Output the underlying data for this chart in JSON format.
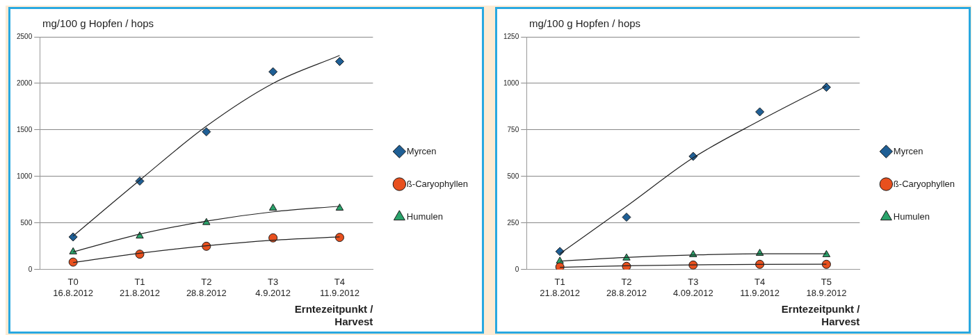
{
  "chart_data": [
    {
      "type": "scatter",
      "ylabel": "mg/100 g Hopfen / hops",
      "xlabel": "Erntezeitpunkt /\nHarvest",
      "categories": [
        "T0\n16.8.2012",
        "T1\n21.8.2012",
        "T2\n28.8.2012",
        "T3\n4.9.2012",
        "T4\n11.9.2012"
      ],
      "ylim": [
        0,
        2500
      ],
      "yticks": [
        0,
        500,
        1000,
        1500,
        2000,
        2500
      ],
      "grid": "y",
      "legend": "right",
      "series": [
        {
          "name": "Myrcen",
          "color": "#1f5f95",
          "marker": "diamond",
          "values": [
            350,
            950,
            1480,
            2125,
            2235
          ]
        },
        {
          "name": "ß-Caryophyllen",
          "color": "#e8501e",
          "marker": "circle",
          "values": [
            80,
            165,
            250,
            340,
            345
          ]
        },
        {
          "name": "Humulen",
          "color": "#2aa36b",
          "marker": "triangle",
          "values": [
            190,
            360,
            505,
            660,
            660
          ]
        },
        {
          "type": "line",
          "color": "#222222",
          "marker": "none",
          "values": [
            360,
            960,
            1540,
            2000,
            2300
          ]
        },
        {
          "type": "line",
          "color": "#222222",
          "marker": "none",
          "values": [
            75,
            175,
            255,
            315,
            350
          ]
        },
        {
          "type": "line",
          "color": "#222222",
          "marker": "none",
          "values": [
            190,
            380,
            520,
            620,
            680
          ]
        }
      ]
    },
    {
      "type": "scatter",
      "ylabel": "mg/100 g Hopfen / hops",
      "xlabel": "Erntezeitpunkt /\nHarvest",
      "categories": [
        "T1\n21.8.2012",
        "T2\n28.8.2012",
        "T3\n4.09.2012",
        "T4\n11.9.2012",
        "T5\n18.9.2012"
      ],
      "ylim": [
        0,
        1250
      ],
      "yticks": [
        0,
        250,
        500,
        750,
        1000,
        1250
      ],
      "grid": "y",
      "legend": "right",
      "series": [
        {
          "name": "Myrcen",
          "color": "#1f5f95",
          "marker": "diamond",
          "values": [
            97,
            281,
            608,
            847,
            979
          ]
        },
        {
          "name": "ß-Caryophyllen",
          "color": "#e8501e",
          "marker": "circle",
          "values": [
            14,
            17,
            24,
            28,
            28
          ]
        },
        {
          "name": "Humulen",
          "color": "#2aa36b",
          "marker": "triangle",
          "values": [
            45,
            62,
            80,
            87,
            80
          ]
        },
        {
          "type": "line",
          "color": "#222222",
          "marker": "none",
          "values": [
            85,
            340,
            600,
            800,
            985
          ]
        },
        {
          "type": "line",
          "color": "#222222",
          "marker": "none",
          "values": [
            12,
            20,
            25,
            28,
            29
          ]
        },
        {
          "type": "line",
          "color": "#222222",
          "marker": "none",
          "values": [
            45,
            65,
            78,
            85,
            85
          ]
        }
      ]
    }
  ]
}
